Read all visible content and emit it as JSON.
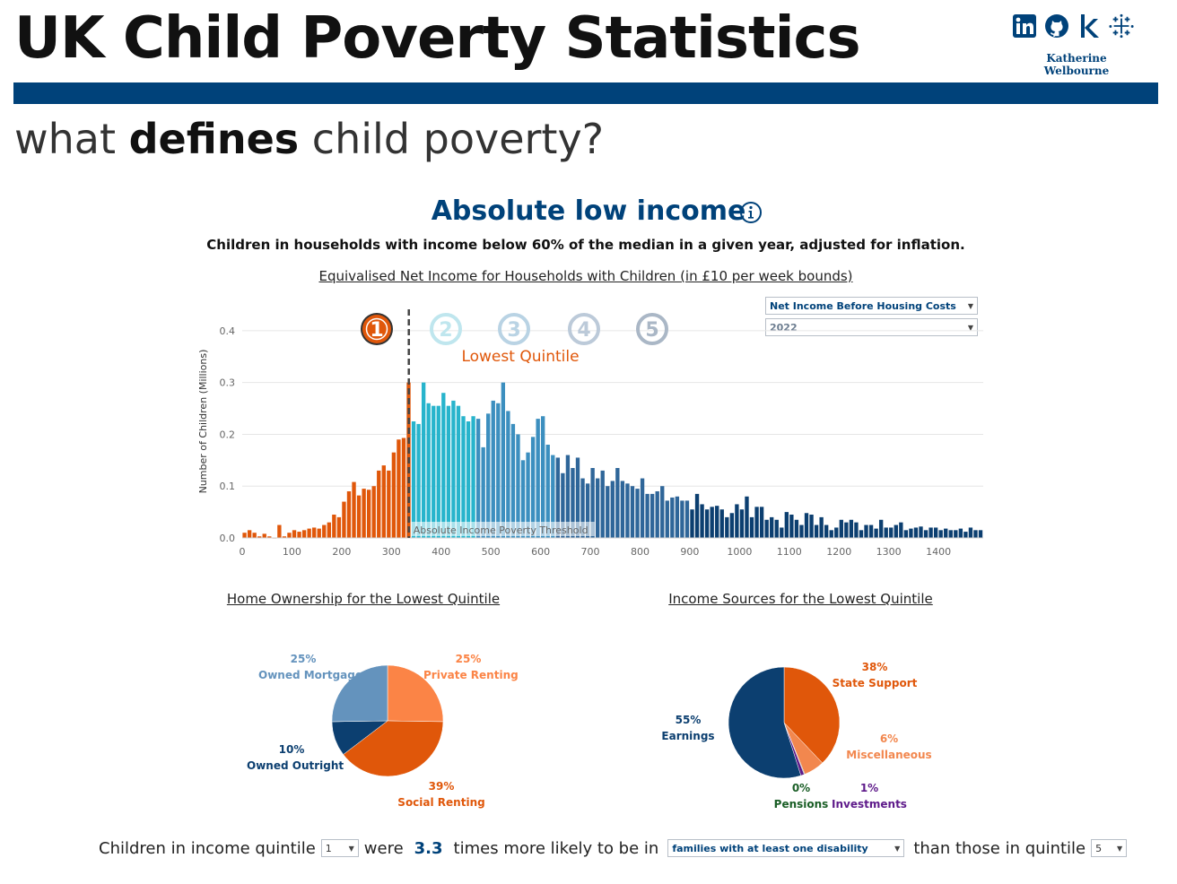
{
  "header": {
    "title": "UK Child Poverty Statistics",
    "subtitle_pre": "what ",
    "subtitle_bold": "defines",
    "subtitle_post": " child poverty?",
    "author": "Katherine Welbourne",
    "social_icons": [
      "linkedin-icon",
      "github-icon",
      "kaggle-icon",
      "tableau-icon"
    ],
    "accent_color": "#00427a"
  },
  "section": {
    "title": "Absolute low income",
    "definition": "Children in households with income below 60% of the median in a given year, adjusted for inflation.",
    "histogram_title": "Equivalised Net Income for Households with Children (in £10 per week bounds)"
  },
  "filters": {
    "measure": "Net Income Before Housing Costs",
    "year": "2022"
  },
  "chart_data": [
    {
      "type": "bar",
      "ylabel": "Number of Children (Millions)",
      "xlim": [
        0,
        1490
      ],
      "ylim": [
        0,
        0.45
      ],
      "x_ticks": [
        0,
        100,
        200,
        300,
        400,
        500,
        600,
        700,
        800,
        900,
        1000,
        1100,
        1200,
        1300,
        1400
      ],
      "y_ticks": [
        0.0,
        0.1,
        0.2,
        0.3,
        0.4
      ],
      "y_tick_labels": [
        "0.0",
        "0.1",
        "0.2",
        "0.3",
        "0.4"
      ],
      "grid": true,
      "bin_width": 10,
      "bin_starts": [
        0,
        10,
        20,
        30,
        40,
        50,
        60,
        70,
        80,
        90,
        100,
        110,
        120,
        130,
        140,
        150,
        160,
        170,
        180,
        190,
        200,
        210,
        220,
        230,
        240,
        250,
        260,
        270,
        280,
        290,
        300,
        310,
        320,
        330,
        340,
        350,
        360,
        370,
        380,
        390,
        400,
        410,
        420,
        430,
        440,
        450,
        460,
        470,
        480,
        490,
        500,
        510,
        520,
        530,
        540,
        550,
        560,
        570,
        580,
        590,
        600,
        610,
        620,
        630,
        640,
        650,
        660,
        670,
        680,
        690,
        700,
        710,
        720,
        730,
        740,
        750,
        760,
        770,
        780,
        790,
        800,
        810,
        820,
        830,
        840,
        850,
        860,
        870,
        880,
        890,
        900,
        910,
        920,
        930,
        940,
        950,
        960,
        970,
        980,
        990,
        1000,
        1010,
        1020,
        1030,
        1040,
        1050,
        1060,
        1070,
        1080,
        1090,
        1100,
        1110,
        1120,
        1130,
        1140,
        1150,
        1160,
        1170,
        1180,
        1190,
        1200,
        1210,
        1220,
        1230,
        1240,
        1250,
        1260,
        1270,
        1280,
        1290,
        1300,
        1310,
        1320,
        1330,
        1340,
        1350,
        1360,
        1370,
        1380,
        1390,
        1400,
        1410,
        1420,
        1430,
        1440,
        1450,
        1460,
        1470,
        1480
      ],
      "values": [
        0.01,
        0.015,
        0.01,
        0.003,
        0.008,
        0.003,
        0.0,
        0.025,
        0.003,
        0.01,
        0.015,
        0.012,
        0.015,
        0.018,
        0.02,
        0.018,
        0.025,
        0.03,
        0.045,
        0.04,
        0.07,
        0.09,
        0.108,
        0.082,
        0.095,
        0.093,
        0.1,
        0.13,
        0.14,
        0.13,
        0.165,
        0.19,
        0.193,
        0.3,
        0.225,
        0.22,
        0.3,
        0.26,
        0.255,
        0.255,
        0.28,
        0.255,
        0.265,
        0.255,
        0.235,
        0.225,
        0.235,
        0.23,
        0.175,
        0.24,
        0.265,
        0.26,
        0.3,
        0.245,
        0.22,
        0.2,
        0.15,
        0.165,
        0.195,
        0.23,
        0.235,
        0.18,
        0.16,
        0.155,
        0.125,
        0.16,
        0.135,
        0.155,
        0.115,
        0.105,
        0.135,
        0.115,
        0.13,
        0.1,
        0.11,
        0.135,
        0.11,
        0.105,
        0.1,
        0.095,
        0.115,
        0.085,
        0.085,
        0.09,
        0.1,
        0.072,
        0.078,
        0.08,
        0.072,
        0.072,
        0.055,
        0.085,
        0.065,
        0.055,
        0.06,
        0.062,
        0.055,
        0.04,
        0.048,
        0.065,
        0.055,
        0.08,
        0.04,
        0.06,
        0.06,
        0.035,
        0.04,
        0.035,
        0.02,
        0.05,
        0.045,
        0.035,
        0.025,
        0.048,
        0.045,
        0.025,
        0.04,
        0.025,
        0.015,
        0.02,
        0.035,
        0.03,
        0.035,
        0.03,
        0.015,
        0.025,
        0.025,
        0.018,
        0.035,
        0.02,
        0.02,
        0.025,
        0.03,
        0.015,
        0.018,
        0.02,
        0.022,
        0.015,
        0.02,
        0.02,
        0.015,
        0.018,
        0.015,
        0.015,
        0.018,
        0.012,
        0.02,
        0.015,
        0.015
      ],
      "quintiles": [
        {
          "label": "1",
          "upper": 340,
          "color": "#e0570a"
        },
        {
          "label": "2",
          "upper": 470,
          "color": "#27b4cc"
        },
        {
          "label": "3",
          "upper": 630,
          "color": "#3c8fbf"
        },
        {
          "label": "4",
          "upper": 900,
          "color": "#2f6699"
        },
        {
          "label": "5",
          "upper": 1490,
          "color": "#0c3f70"
        }
      ],
      "selected_quintile_label": "Lowest Quintile",
      "threshold": {
        "x": 335,
        "label": "Absolute Income Poverty Threshold"
      }
    },
    {
      "type": "pie",
      "title": "Home Ownership for the  Lowest Quintile",
      "slices": [
        {
          "name": "Private Renting",
          "pct_label": "25%",
          "value": 25,
          "color": "#fb8446"
        },
        {
          "name": "Social Renting",
          "pct_label": "39%",
          "value": 39,
          "color": "#e0570a"
        },
        {
          "name": "Owned Outright",
          "pct_label": "10%",
          "value": 10,
          "color": "#0c3f70"
        },
        {
          "name": "Owned Mortgage",
          "pct_label": "25%",
          "value": 25,
          "color": "#6493bd"
        }
      ]
    },
    {
      "type": "pie",
      "title": "Income Sources for the  Lowest Quintile",
      "slices": [
        {
          "name": "State Support",
          "pct_label": "38%",
          "value": 38,
          "color": "#e0570a"
        },
        {
          "name": "Miscellaneous",
          "pct_label": "6%",
          "value": 6,
          "color": "#f2874e"
        },
        {
          "name": "Pensions",
          "pct_label": "0%",
          "value": 0.2,
          "color": "#1a5e26"
        },
        {
          "name": "Investments",
          "pct_label": "1%",
          "value": 1,
          "color": "#5e1a8a"
        },
        {
          "name": "Earnings",
          "pct_label": "55%",
          "value": 55,
          "color": "#0c3f70"
        }
      ]
    }
  ],
  "comparison": {
    "text1": "Children in income quintile",
    "quintile_a": "1",
    "text2": "were",
    "ratio": "3.3",
    "text3": "times more likely to be in",
    "category": "families with at least one disability",
    "text4": "than those in quintile",
    "quintile_b": "5"
  }
}
